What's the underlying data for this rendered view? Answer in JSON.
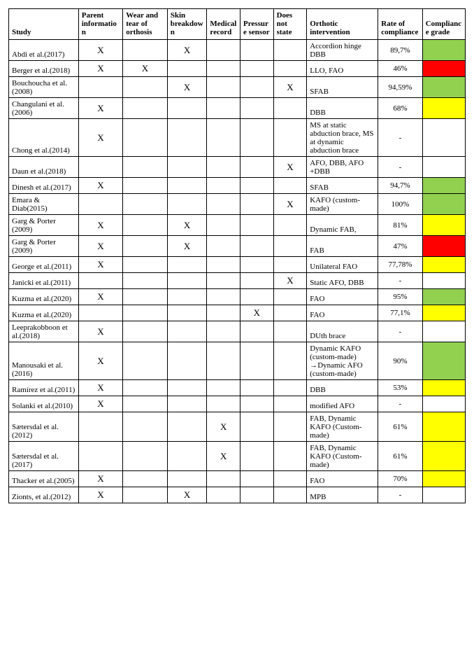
{
  "headers": {
    "study": "Study",
    "parent": "Parent information",
    "wear": "Wear and tear of orthosis",
    "skin": "Skin breakdown",
    "medical": "Medical record",
    "pressure": "Pressure sensor",
    "does": "Does not state",
    "orth": "Orthotic intervention",
    "rate": "Rate of compliance",
    "grade": "Compliance grade"
  },
  "grade_colors": {
    "green": "#92d050",
    "yellow": "#ffff00",
    "red": "#ff0000",
    "none": "#ffffff"
  },
  "mark": "X",
  "rows": [
    {
      "study": "Abdi et al.(2017)",
      "parent": true,
      "wear": false,
      "skin": true,
      "medical": false,
      "pressure": false,
      "does": false,
      "orth": "Accordion hinge DBB",
      "rate": "89,7%",
      "grade": "green"
    },
    {
      "study": "Berger et al.(2018)",
      "parent": true,
      "wear": true,
      "skin": false,
      "medical": false,
      "pressure": false,
      "does": false,
      "orth": "LLO, FAO",
      "rate": "46%",
      "grade": "red"
    },
    {
      "study": "Bouchoucha et al. (2008)",
      "parent": false,
      "wear": false,
      "skin": true,
      "medical": false,
      "pressure": false,
      "does": true,
      "orth": "SFAB",
      "rate": "94,59%",
      "grade": "green"
    },
    {
      "study": "Changulani et al.(2006)",
      "parent": true,
      "wear": false,
      "skin": false,
      "medical": false,
      "pressure": false,
      "does": false,
      "orth": "DBB",
      "rate": "68%",
      "grade": "yellow"
    },
    {
      "study": "Chong et al.(2014)",
      "parent": true,
      "wear": false,
      "skin": false,
      "medical": false,
      "pressure": false,
      "does": false,
      "orth": "MS at static abduction brace, MS at dynamic abduction brace",
      "rate": "-",
      "grade": "none"
    },
    {
      "study": "Daun et al.(2018)",
      "parent": false,
      "wear": false,
      "skin": false,
      "medical": false,
      "pressure": false,
      "does": true,
      "orth": "AFO, DBB, AFO +DBB",
      "rate": "-",
      "grade": "none"
    },
    {
      "study": "Dinesh et al.(2017)",
      "parent": true,
      "wear": false,
      "skin": false,
      "medical": false,
      "pressure": false,
      "does": false,
      "orth": "SFAB",
      "rate": "94,7%",
      "grade": "green"
    },
    {
      "study": "Emara & Diab(2015)",
      "parent": false,
      "wear": false,
      "skin": false,
      "medical": false,
      "pressure": false,
      "does": true,
      "orth": "KAFO (custom-made)",
      "rate": "100%",
      "grade": "green"
    },
    {
      "study": "Garg & Porter (2009)",
      "parent": true,
      "wear": false,
      "skin": true,
      "medical": false,
      "pressure": false,
      "does": false,
      "orth": "Dynamic FAB,",
      "rate": "81%",
      "grade": "yellow"
    },
    {
      "study": "Garg & Porter (2009)",
      "parent": true,
      "wear": false,
      "skin": true,
      "medical": false,
      "pressure": false,
      "does": false,
      "orth": "FAB",
      "rate": "47%",
      "grade": "red"
    },
    {
      "study": "George et al.(2011)",
      "parent": true,
      "wear": false,
      "skin": false,
      "medical": false,
      "pressure": false,
      "does": false,
      "orth": "Unilateral FAO",
      "rate": "77,78%",
      "grade": "yellow"
    },
    {
      "study": "Janicki et al.(2011)",
      "parent": false,
      "wear": false,
      "skin": false,
      "medical": false,
      "pressure": false,
      "does": true,
      "orth": "Static AFO, DBB",
      "rate": "-",
      "grade": "none"
    },
    {
      "study": "Kuzma et al.(2020)",
      "parent": true,
      "wear": false,
      "skin": false,
      "medical": false,
      "pressure": false,
      "does": false,
      "orth": "FAO",
      "rate": "95%",
      "grade": "green"
    },
    {
      "study": "Kuzma et al.(2020)",
      "parent": false,
      "wear": false,
      "skin": false,
      "medical": false,
      "pressure": true,
      "does": false,
      "orth": "FAO",
      "rate": "77,1%",
      "grade": "yellow"
    },
    {
      "study": "Leeprakobboon et al.(2018)",
      "parent": true,
      "wear": false,
      "skin": false,
      "medical": false,
      "pressure": false,
      "does": false,
      "orth": "DUth brace",
      "rate": "-",
      "grade": "none"
    },
    {
      "study": "Manousaki et al.(2016)",
      "parent": true,
      "wear": false,
      "skin": false,
      "medical": false,
      "pressure": false,
      "does": false,
      "orth": "Dynamic KAFO (custom-made) →Dynamic AFO (custom-made)",
      "rate": "90%",
      "grade": "green"
    },
    {
      "study": "Ramírez et al.(2011)",
      "parent": true,
      "wear": false,
      "skin": false,
      "medical": false,
      "pressure": false,
      "does": false,
      "orth": "DBB",
      "rate": "53%",
      "grade": "yellow"
    },
    {
      "study": "Solanki et al.(2010)",
      "parent": true,
      "wear": false,
      "skin": false,
      "medical": false,
      "pressure": false,
      "does": false,
      "orth": "modified AFO",
      "rate": "-",
      "grade": "none"
    },
    {
      "study": "Sætersdal et al.(2012)",
      "parent": false,
      "wear": false,
      "skin": false,
      "medical": true,
      "pressure": false,
      "does": false,
      "orth": "FAB, Dynamic KAFO (Custom-made)",
      "rate": "61%",
      "grade": "yellow"
    },
    {
      "study": "Sætersdal et al.(2017)",
      "parent": false,
      "wear": false,
      "skin": false,
      "medical": true,
      "pressure": false,
      "does": false,
      "orth": "FAB, Dynamic KAFO (Custom-made)",
      "rate": "61%",
      "grade": "yellow"
    },
    {
      "study": "Thacker et al.(2005)",
      "parent": true,
      "wear": false,
      "skin": false,
      "medical": false,
      "pressure": false,
      "does": false,
      "orth": "FAO",
      "rate": "70%",
      "grade": "yellow"
    },
    {
      "study": "Zionts, et al.(2012)",
      "parent": true,
      "wear": false,
      "skin": true,
      "medical": false,
      "pressure": false,
      "does": false,
      "orth": "MPB",
      "rate": "-",
      "grade": "none"
    }
  ]
}
